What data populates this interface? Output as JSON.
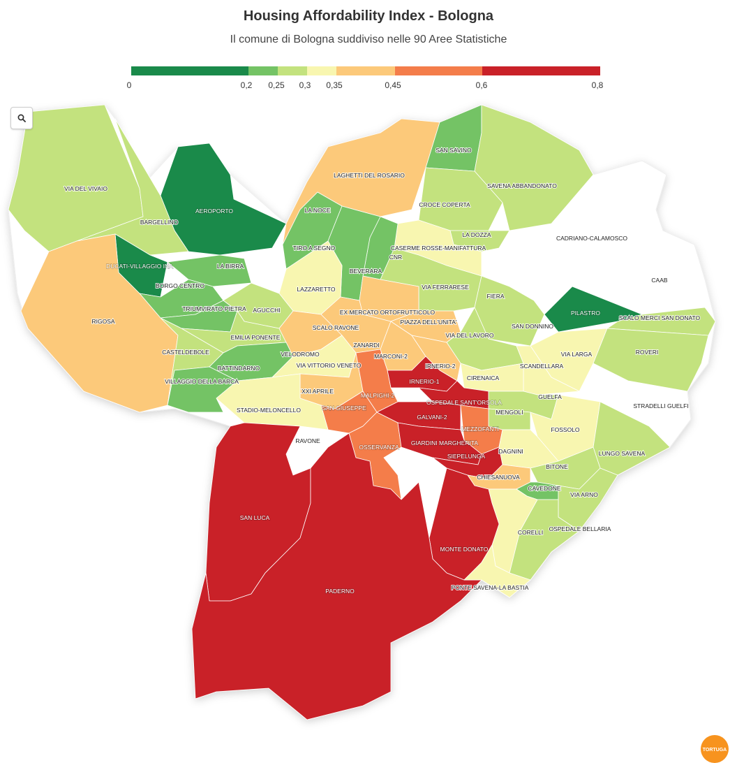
{
  "title": "Housing Affordability Index - Bologna",
  "subtitle": "Il comune di Bologna suddiviso nelle 90 Aree Statistiche",
  "legend": {
    "ticks": [
      "0",
      "0,2",
      "0,25",
      "0,3",
      "0,35",
      "0,45",
      "0,6",
      "0,8"
    ],
    "bins": [
      {
        "from": 0,
        "to": 0.2,
        "color": "#1a8a4a"
      },
      {
        "from": 0.2,
        "to": 0.25,
        "color": "#74c365"
      },
      {
        "from": 0.25,
        "to": 0.3,
        "color": "#c3e27e"
      },
      {
        "from": 0.3,
        "to": 0.35,
        "color": "#f8f6b0"
      },
      {
        "from": 0.35,
        "to": 0.45,
        "color": "#fcc97a"
      },
      {
        "from": 0.45,
        "to": 0.6,
        "color": "#f47d4a"
      },
      {
        "from": 0.6,
        "to": 0.8,
        "color": "#c92128"
      }
    ]
  },
  "controls": {
    "search_icon": "search-icon"
  },
  "logo": {
    "text": "TORTUGA"
  },
  "areas": [
    {
      "name": "VIA DEL VIVAIO",
      "bin": 2
    },
    {
      "name": "AEROPORTO",
      "bin": 0
    },
    {
      "name": "BARGELLINO",
      "bin": 2
    },
    {
      "name": "LA NOCE",
      "bin": -1
    },
    {
      "name": "LAGHETTI DEL ROSARIO",
      "bin": 4
    },
    {
      "name": "SAN SAVINO",
      "bin": 1
    },
    {
      "name": "SAVENA ABBANDONATO",
      "bin": 2
    },
    {
      "name": "CROCE COPERTA",
      "bin": 2
    },
    {
      "name": "LA DOZZA",
      "bin": 2
    },
    {
      "name": "CADRIANO-CALAMOSCO",
      "bin": -1
    },
    {
      "name": "CASERME ROSSE-MANIFATTURA",
      "bin": 3
    },
    {
      "name": "CNR",
      "bin": 1
    },
    {
      "name": "TIRO A SEGNO",
      "bin": 1
    },
    {
      "name": "DUCATI-VILLAGGIO INA",
      "bin": 0
    },
    {
      "name": "LA BIRRA",
      "bin": 1
    },
    {
      "name": "BEVERARA",
      "bin": 1
    },
    {
      "name": "CAAB",
      "bin": -1
    },
    {
      "name": "BORGO CENTRO",
      "bin": 1
    },
    {
      "name": "LAZZARETTO",
      "bin": 3
    },
    {
      "name": "VIA FERRARESE",
      "bin": 2
    },
    {
      "name": "FIERA",
      "bin": -1
    },
    {
      "name": "RIGOSA",
      "bin": 4
    },
    {
      "name": "TRIUMVIRATO-PIETRA",
      "bin": 1
    },
    {
      "name": "AGUCCHI",
      "bin": 2
    },
    {
      "name": "EX MERCATO ORTOFRUTTICOLO",
      "bin": 4
    },
    {
      "name": "PILASTRO",
      "bin": 0
    },
    {
      "name": "SCALO MERCI SAN DONATO",
      "bin": 2
    },
    {
      "name": "SCALO RAVONE",
      "bin": -1
    },
    {
      "name": "PIAZZA DELL'UNITA'",
      "bin": 4
    },
    {
      "name": "SAN DONNINO",
      "bin": 2
    },
    {
      "name": "EMILIA PONENTE",
      "bin": 2
    },
    {
      "name": "VIA DEL LAVORO",
      "bin": 2
    },
    {
      "name": "ZANARDI",
      "bin": 4
    },
    {
      "name": "CASTELDEBOLE",
      "bin": 2
    },
    {
      "name": "VELODROMO",
      "bin": 4
    },
    {
      "name": "MARCONI-2",
      "bin": 4
    },
    {
      "name": "VIA LARGA",
      "bin": 3
    },
    {
      "name": "ROVERI",
      "bin": 2
    },
    {
      "name": "BATTINDARNO",
      "bin": 1
    },
    {
      "name": "VIA VITTORIO VENETO",
      "bin": 3
    },
    {
      "name": "IRNERIO-2",
      "bin": 4
    },
    {
      "name": "SCANDELLARA",
      "bin": 3
    },
    {
      "name": "CIRENAICA",
      "bin": 3
    },
    {
      "name": "VILLAGGIO DELLA BARCA",
      "bin": 1
    },
    {
      "name": "IRNERIO-1",
      "bin": 6
    },
    {
      "name": "XXI APRILE",
      "bin": 4
    },
    {
      "name": "MALPIGHI-2",
      "bin": 5
    },
    {
      "name": "OSPEDALE SANT'ORSOLA",
      "bin": 6
    },
    {
      "name": "GUELFA",
      "bin": 2
    },
    {
      "name": "STRADELLI GUELFI",
      "bin": -1
    },
    {
      "name": "SAN GIUSEPPE",
      "bin": 5
    },
    {
      "name": "STADIO-MELONCELLO",
      "bin": 3
    },
    {
      "name": "GALVANI-2",
      "bin": 6
    },
    {
      "name": "MENGOLI",
      "bin": 2
    },
    {
      "name": "FOSSOLO",
      "bin": 3
    },
    {
      "name": "MEZZOFANTI",
      "bin": 5
    },
    {
      "name": "RAVONE",
      "bin": -1
    },
    {
      "name": "OSSERVANZA",
      "bin": 5
    },
    {
      "name": "GIARDINI MARGHERITA",
      "bin": 6
    },
    {
      "name": "DAGNINI",
      "bin": 3
    },
    {
      "name": "LUNGO SAVENA",
      "bin": 2
    },
    {
      "name": "SIEPELUNGA",
      "bin": 6
    },
    {
      "name": "BITONE",
      "bin": 2
    },
    {
      "name": "CHIESANUOVA",
      "bin": 4
    },
    {
      "name": "CAVEDONE",
      "bin": 1
    },
    {
      "name": "VIA ARNO",
      "bin": 2
    },
    {
      "name": "SAN LUCA",
      "bin": 6
    },
    {
      "name": "OSPEDALE BELLARIA",
      "bin": 2
    },
    {
      "name": "CORELLI",
      "bin": 3
    },
    {
      "name": "MONTE DONATO",
      "bin": 6
    },
    {
      "name": "PADERNO",
      "bin": 6
    },
    {
      "name": "PONTE SAVENA-LA BASTIA",
      "bin": 3
    }
  ]
}
